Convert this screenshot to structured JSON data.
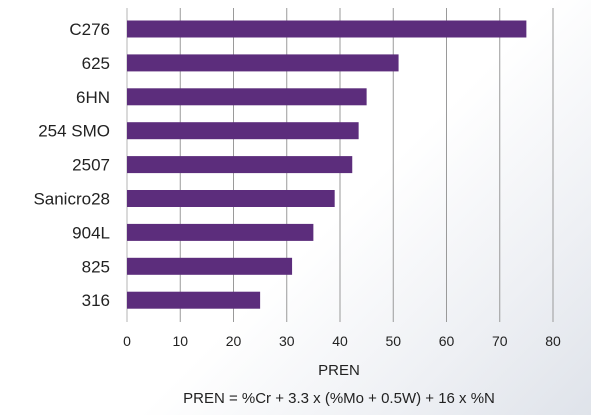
{
  "chart_data": {
    "type": "bar",
    "orientation": "horizontal",
    "categories": [
      "C276",
      "625",
      "6HN",
      "254 SMO",
      "2507",
      "Sanicro28",
      "904L",
      "825",
      "316"
    ],
    "values": [
      75,
      51,
      45,
      43.5,
      42.3,
      39,
      35,
      31,
      25
    ],
    "xlabel": "PREN",
    "xlim": [
      0,
      80
    ],
    "xticks": [
      0,
      10,
      20,
      30,
      40,
      50,
      60,
      70,
      80
    ],
    "grid": true,
    "bar_color": "#5c2d7c",
    "annotation": "PREN = %Cr + 3.3 x (%Mo + 0.5W) + 16 x %N"
  }
}
